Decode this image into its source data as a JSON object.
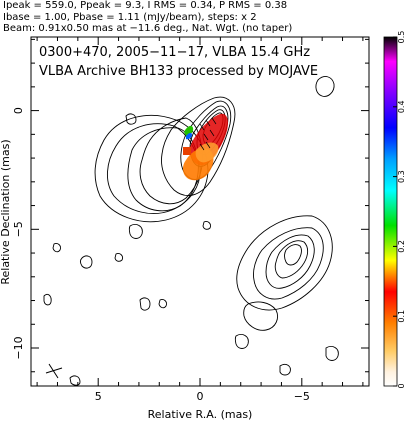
{
  "header": {
    "line1": "Ipeak = 559.0, Ppeak = 9.3, I RMS = 0.34, P RMS = 0.38",
    "line2": "Ibase = 1.00, Pbase = 1.11 (mJy/beam), steps: x 2",
    "line3": "Beam: 0.91x0.50 mas at −11.6 deg., Nat. Wgt. (no taper)"
  },
  "chart_data": {
    "type": "contour",
    "annotation_line1": "0300+470, 2005−11−17, VLBA 15.4 GHz",
    "annotation_line2": "VLBA Archive BH133 processed by MOJAVE",
    "xlabel": "Relative R.A. (mas)",
    "ylabel": "Relative Declination (mas)",
    "xlim": [
      8.3,
      -8.3
    ],
    "ylim": [
      -11.6,
      3.1
    ],
    "x_ticks": [
      5,
      0,
      -5
    ],
    "x_tick_labels": [
      "5",
      "0",
      "−5"
    ],
    "y_ticks": [
      0,
      -5,
      -10
    ],
    "y_tick_labels": [
      "0",
      "−5",
      "−10"
    ],
    "colorbar": {
      "range": [
        0,
        0.5
      ],
      "ticks": [
        0,
        0.1,
        0.2,
        0.3,
        0.4,
        0.5
      ],
      "tick_labels": [
        "0",
        "0.1",
        "0.2",
        "0.3",
        "0.4",
        "0.5"
      ]
    },
    "beam": {
      "major_mas": 0.91,
      "minor_mas": 0.5,
      "pa_deg": -11.6
    }
  }
}
